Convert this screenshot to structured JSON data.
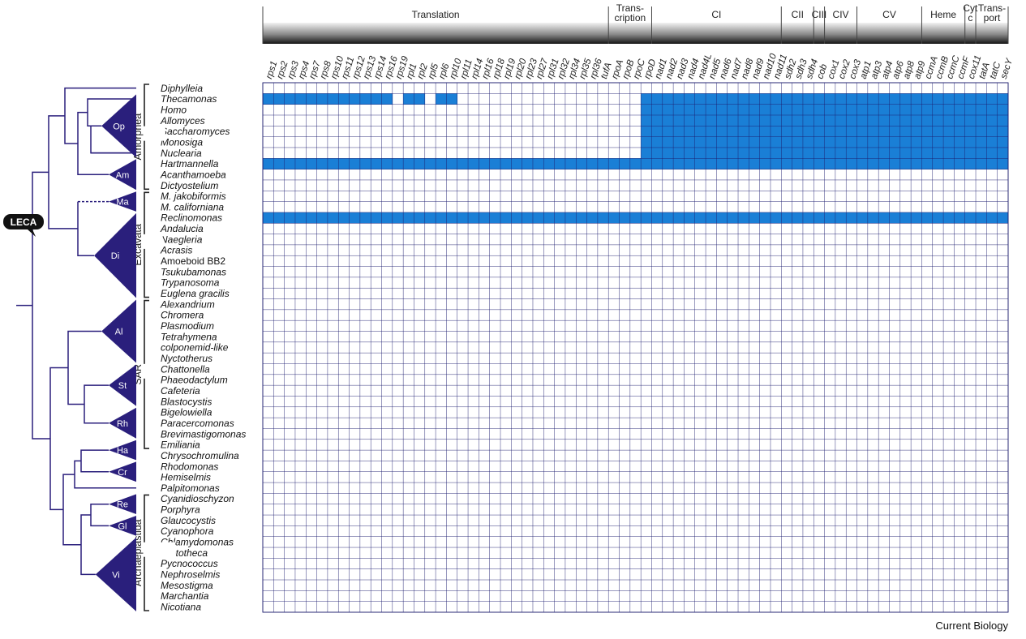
{
  "colors": {
    "filled": "#1a7fd6",
    "grid": "#1c1c6e",
    "tree": "#2a1f7c",
    "bar_dark": "#1a1a1a",
    "bar_light": "#eeeeee"
  },
  "functional_groups": [
    {
      "label": "Translation",
      "genes": [
        "rps1",
        "rps2",
        "rps3",
        "rps4",
        "rps7",
        "rps8",
        "rps10",
        "rps11",
        "rps12",
        "rps13",
        "rps14",
        "rps16",
        "rps19",
        "rpl1",
        "rpl2",
        "rpl5",
        "rpl6",
        "rpl10",
        "rpl11",
        "rpl14",
        "rpl16",
        "rpl18",
        "rpl19",
        "rpl20",
        "rpl23",
        "rpl27",
        "rpl31",
        "rpl32",
        "rpl34",
        "rpl35",
        "rpl36",
        "tufA"
      ]
    },
    {
      "label": "Trans-\ncription",
      "genes": [
        "rpoA",
        "rpoB",
        "rpoC",
        "rpoD"
      ]
    },
    {
      "label": "CI",
      "genes": [
        "nad1",
        "nad2",
        "nad3",
        "nad4",
        "nad4L",
        "nad5",
        "nad6",
        "nad7",
        "nad8",
        "nad9",
        "nad10",
        "nad11"
      ]
    },
    {
      "label": "CII",
      "genes": [
        "sdh2",
        "sdh3",
        "sdh4"
      ]
    },
    {
      "label": "CIII",
      "genes": [
        "cob"
      ]
    },
    {
      "label": "CIV",
      "genes": [
        "cox1",
        "cox2",
        "cox3"
      ]
    },
    {
      "label": "CV",
      "genes": [
        "atp1",
        "atp3",
        "atp4",
        "atp6",
        "atp8",
        "atp9"
      ]
    },
    {
      "label": "Heme",
      "genes": [
        "ccmA",
        "ccmB",
        "ccmC",
        "ccmF"
      ]
    },
    {
      "label": "Cyt\nc",
      "genes": [
        "cox11"
      ]
    },
    {
      "label": "Trans-\nport",
      "genes": [
        "tatA",
        "tatC",
        "secY"
      ]
    }
  ],
  "taxa": [
    "Diphylleia",
    "Thecamonas",
    "Homo",
    "Allomyces",
    "Saccharomyces",
    "Monosiga",
    "Nuclearia",
    "Hartmannella",
    "Acanthamoeba",
    "Dictyostelium",
    "M. jakobiformis",
    "M. californiana",
    "Reclinomonas",
    "Andalucia",
    "Naegleria",
    "Acrasis",
    "Amoeboid BB2",
    "Tsukubamonas",
    "Trypanosoma",
    "Euglena gracilis",
    "Alexandrium",
    "Chromera",
    "Plasmodium",
    "Tetrahymena",
    "colponemid-like",
    "Nyctotherus",
    "Chattonella",
    "Phaeodactylum",
    "Cafeteria",
    "Blastocystis",
    "Bigelowiella",
    "Paracercomonas",
    "Brevimastigomonas",
    "Emiliania",
    "Chrysochromulina",
    "Rhodomonas",
    "Hemiselmis",
    "Palpitomonas",
    "Cyanidioschyzon",
    "Porphyra",
    "Glaucocystis",
    "Cyanophora",
    "Chlamydomonas",
    "Prototheca",
    "Pycnococcus",
    "Nephroselmis",
    "Mesostigma",
    "Marchantia",
    "Nicotiana"
  ],
  "upright_taxa": [
    "Amoeboid BB2"
  ],
  "supergroups": [
    {
      "label": "Amorphea",
      "start": 0,
      "end": 9
    },
    {
      "label": "Excavata",
      "start": 10,
      "end": 19
    },
    {
      "label": "SAR",
      "start": 20,
      "end": 33
    },
    {
      "label": "Archaeplastida",
      "start": 38,
      "end": 48
    }
  ],
  "clades": [
    {
      "label": "Op",
      "start": 1,
      "end": 6
    },
    {
      "label": "Am",
      "start": 7,
      "end": 9
    },
    {
      "label": "Ma",
      "start": 10,
      "end": 11
    },
    {
      "label": "Di",
      "start": 12,
      "end": 19
    },
    {
      "label": "Al",
      "start": 20,
      "end": 25
    },
    {
      "label": "St",
      "start": 26,
      "end": 29
    },
    {
      "label": "Rh",
      "start": 30,
      "end": 32
    },
    {
      "label": "Ha",
      "start": 33,
      "end": 34
    },
    {
      "label": "Cr",
      "start": 35,
      "end": 36
    },
    {
      "label": "Re",
      "start": 38,
      "end": 39
    },
    {
      "label": "Gl",
      "start": 40,
      "end": 41
    },
    {
      "label": "Vi",
      "start": 42,
      "end": 48
    }
  ],
  "root_label": "LECA",
  "credit": "Current Biology",
  "matrix": [
    "00000000000000000000000000000000000000000000000000000000000000000000000000000000",
    "11111111111101101100000000000000000111111111111111111111111111111111111111111111",
    "00000000000000000000000000000000000111111111111111111111111111111111111111111111",
    "00000000000000000000000000000000000111111111111111111111111111111111111111111111",
    "00000000000000000000000000000000000111111111111111111111111111111111111111111111",
    "00000000000000000000000000000000000111111111111111111111111111111111111111111111",
    "00000000000000000000000000000000000111111111111111111111111111111111111111111111",
    "11111111111111111111111111111111111111111111111111111111111111111111111111111111",
    "00000000000000000000000000000000000000000000000000000000000000000000000000000000",
    "00000000000000000000000000000000000000000000000000000000000000000000000000000000",
    "00000000000000000000000000000000000000000000000000000000000000000000000000000000",
    "00000000000000000000000000000000000000000000000000000000000000000000000000000000",
    "11111111111111111111111111111111111111111111111111111111111111111111111111111111",
    "00000000000000000000000000000000000000000000000000000000000000000000000000000000",
    "00000000000000000000000000000000000000000000000000000000000000000000000000000000",
    "00000000000000000000000000000000000000000000000000000000000000000000000000000000",
    "00000000000000000000000000000000000000000000000000000000000000000000000000000000",
    "00000000000000000000000000000000000000000000000000000000000000000000000000000000",
    "00000000000000000000000000000000000000000000000000000000000000000000000000000000",
    "00000000000000000000000000000000000000000000000000000000000000000000000000000000",
    "00000000000000000000000000000000000000000000000000000000000000000000000000000000",
    "00000000000000000000000000000000000000000000000000000000000000000000000000000000",
    "00000000000000000000000000000000000000000000000000000000000000000000000000000000",
    "00000000000000000000000000000000000000000000000000000000000000000000000000000000",
    "00000000000000000000000000000000000000000000000000000000000000000000000000000000",
    "00000000000000000000000000000000000000000000000000000000000000000000000000000000",
    "00000000000000000000000000000000000000000000000000000000000000000000000000000000",
    "00000000000000000000000000000000000000000000000000000000000000000000000000000000",
    "00000000000000000000000000000000000000000000000000000000000000000000000000000000",
    "00000000000000000000000000000000000000000000000000000000000000000000000000000000",
    "00000000000000000000000000000000000000000000000000000000000000000000000000000000",
    "00000000000000000000000000000000000000000000000000000000000000000000000000000000",
    "00000000000000000000000000000000000000000000000000000000000000000000000000000000",
    "00000000000000000000000000000000000000000000000000000000000000000000000000000000",
    "00000000000000000000000000000000000000000000000000000000000000000000000000000000",
    "00000000000000000000000000000000000000000000000000000000000000000000000000000000",
    "00000000000000000000000000000000000000000000000000000000000000000000000000000000",
    "00000000000000000000000000000000000000000000000000000000000000000000000000000000",
    "00000000000000000000000000000000000000000000000000000000000000000000000000000000",
    "00000000000000000000000000000000000000000000000000000000000000000000000000000000",
    "00000000000000000000000000000000000000000000000000000000000000000000000000000000",
    "00000000000000000000000000000000000000000000000000000000000000000000000000000000",
    "00000000000000000000000000000000000000000000000000000000000000000000000000000000",
    "00000000000000000000000000000000000000000000000000000000000000000000000000000000",
    "00000000000000000000000000000000000000000000000000000000000000000000000000000000",
    "00000000000000000000000000000000000000000000000000000000000000000000000000000000",
    "00000000000000000000000000000000000000000000000000000000000000000000000000000000",
    "00000000000000000000000000000000000000000000000000000000000000000000000000000000",
    "00000000000000000000000000000000000000000000000000000000000000000000000000000000"
  ]
}
